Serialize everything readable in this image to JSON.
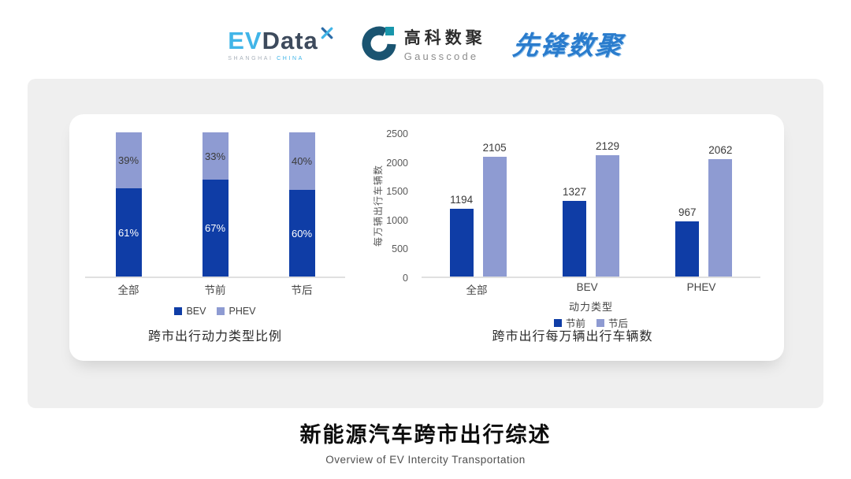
{
  "header": {
    "evdata": {
      "ev": "EV",
      "data": "Data",
      "sub1": "SHANGHAI",
      "sub2": "CHINA"
    },
    "gausscode": {
      "cn": "高科数聚",
      "en": "Gausscode"
    },
    "pioneer": {
      "text": "先锋数聚"
    }
  },
  "colors": {
    "dark_blue": "#0f3da6",
    "light_blue": "#8e9bd2",
    "card_gray": "#efefef"
  },
  "chart_data": [
    {
      "type": "bar",
      "subtype": "stacked-100-percent",
      "title": "跨市出行动力类型比例",
      "categories": [
        "全部",
        "节前",
        "节后"
      ],
      "series": [
        {
          "name": "BEV",
          "color": "#0f3da6",
          "values": [
            61,
            67,
            60
          ]
        },
        {
          "name": "PHEV",
          "color": "#8e9bd2",
          "values": [
            39,
            33,
            40
          ]
        }
      ],
      "value_suffix": "%",
      "ylim": [
        0,
        100
      ],
      "grid": false,
      "legend_position": "bottom"
    },
    {
      "type": "bar",
      "subtype": "grouped",
      "title": "跨市出行每万辆出行车辆数",
      "categories": [
        "全部",
        "BEV",
        "PHEV"
      ],
      "series": [
        {
          "name": "节前",
          "color": "#0f3da6",
          "values": [
            1194,
            1327,
            967
          ]
        },
        {
          "name": "节后",
          "color": "#8e9bd2",
          "values": [
            2105,
            2129,
            2062
          ]
        }
      ],
      "xlabel": "动力类型",
      "ylabel": "每万辆出行车辆数",
      "ylim": [
        0,
        2500
      ],
      "yticks": [
        0,
        500,
        1000,
        1500,
        2000,
        2500
      ],
      "grid": false,
      "legend_position": "bottom"
    }
  ],
  "footer": {
    "title": "新能源汽车跨市出行综述",
    "subtitle": "Overview of EV Intercity Transportation"
  }
}
